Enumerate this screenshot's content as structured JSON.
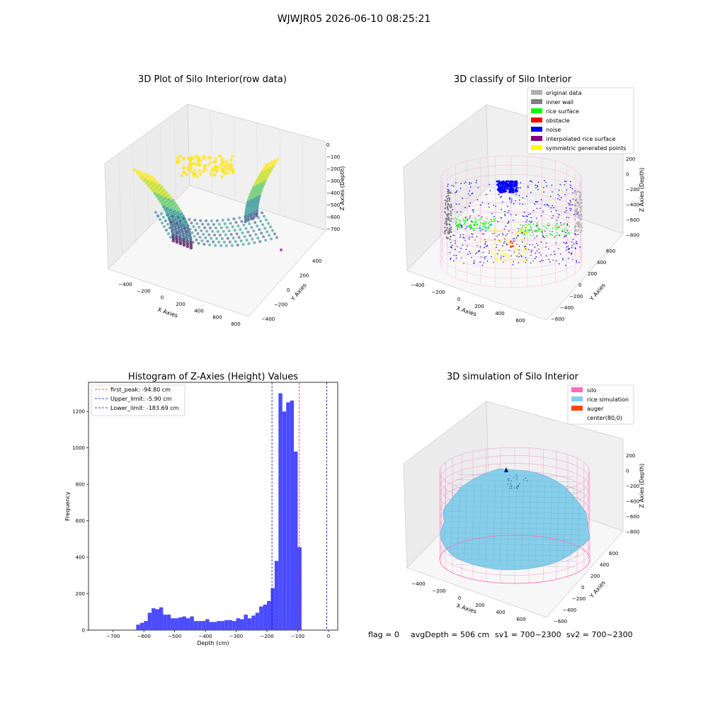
{
  "figure": {
    "suptitle": "WJWJR05 2026-06-10 08:25:21",
    "status_line": {
      "flag": "flag = 0",
      "avg_depth": "avgDepth = 506 cm",
      "sv1": "sv1 = 700~2300",
      "sv2": "sv2 = 700~2300"
    },
    "colors": {
      "original_data": "#b0b0b0",
      "inner_wall": "#808080",
      "rice_surface": "#00ff00",
      "obstacle": "#ff0000",
      "noise": "#0000ff",
      "interpolated_rice_surface": "#800080",
      "symmetric_generated_points": "#ffff00",
      "silo": "#ff69b4",
      "rice_simulation": "#87ceeb",
      "auger": "#ff4500",
      "hist_bar": "#4b4bff"
    }
  },
  "chart_data": [
    {
      "type": "scatter",
      "subtype": "3d",
      "title": "3D Plot of Silo Interior(row data)",
      "xlabel": "X Axies",
      "ylabel": "Y Axies",
      "zlabel": "Z Axies (Depth)",
      "x_ticks": [
        "−400",
        "−200",
        "0",
        "200",
        "400",
        "600",
        "800"
      ],
      "y_ticks": [
        "−400",
        "−200",
        "0",
        "200",
        "400"
      ],
      "z_ticks": [
        "0",
        "−100",
        "−200",
        "−300",
        "−400",
        "−500",
        "−600",
        "−700"
      ],
      "colormap": "viridis"
    },
    {
      "type": "scatter",
      "subtype": "3d",
      "title": "3D classify of Silo Interior",
      "xlabel": "X Axies",
      "ylabel": "Y Axies",
      "zlabel": "Z Axies (Depth)",
      "x_ticks": [
        "−400",
        "−200",
        "0",
        "200",
        "400",
        "600"
      ],
      "y_ticks": [
        "−600",
        "−400",
        "−200",
        "0",
        "200",
        "400",
        "600"
      ],
      "z_ticks": [
        "200",
        "0",
        "−200",
        "−400",
        "−600",
        "−800"
      ],
      "legend": [
        "original data",
        "inner wall",
        "rice surface",
        "obstacle",
        "noise",
        "interpolated rice surface",
        "symmetric generated points"
      ],
      "legend_position": "top-right"
    },
    {
      "type": "bar",
      "title": "Histogram of Z-Axies (Height) Values",
      "xlabel": "Depth (cm)",
      "ylabel": "Frequency",
      "xlim": [
        -780,
        30
      ],
      "ylim": [
        0,
        1360
      ],
      "x_ticks": [
        -700,
        -600,
        -500,
        -400,
        -300,
        -200,
        -100,
        0
      ],
      "y_ticks": [
        0,
        200,
        400,
        600,
        800,
        1000,
        1200
      ],
      "bin_start": -625,
      "bin_width": 12.5,
      "values": [
        30,
        40,
        50,
        95,
        120,
        115,
        125,
        85,
        85,
        65,
        65,
        70,
        75,
        65,
        75,
        50,
        50,
        50,
        60,
        45,
        45,
        50,
        50,
        55,
        55,
        50,
        65,
        60,
        85,
        65,
        80,
        95,
        130,
        140,
        160,
        230,
        380,
        1300,
        1200,
        1250,
        1260,
        980,
        455
      ],
      "lines": [
        {
          "label": "first_peak: -94.80 cm",
          "x": -94.8,
          "color": "#d62728"
        },
        {
          "label": "Upper_limit: -5.90 cm",
          "x": -5.9,
          "color": "#0000cc"
        },
        {
          "label": "Lower_limit: -183.69 cm",
          "x": -183.69,
          "color": "#0000cc"
        }
      ],
      "legend_position": "top-left"
    },
    {
      "type": "area",
      "subtype": "3d-surface",
      "title": "3D simulation of Silo Interior",
      "xlabel": "X Axies",
      "ylabel": "Y Axies",
      "zlabel": "Z Axies (Depth)",
      "x_ticks": [
        "−400",
        "−200",
        "0",
        "200",
        "400",
        "600"
      ],
      "y_ticks": [
        "−600",
        "−400",
        "−200",
        "0",
        "200",
        "400",
        "600"
      ],
      "z_ticks": [
        "200",
        "0",
        "−200",
        "−400",
        "−600",
        "−800"
      ],
      "legend": [
        "silo",
        "rice simulation",
        "auger",
        "center(80,0)"
      ],
      "legend_position": "top-right"
    }
  ]
}
